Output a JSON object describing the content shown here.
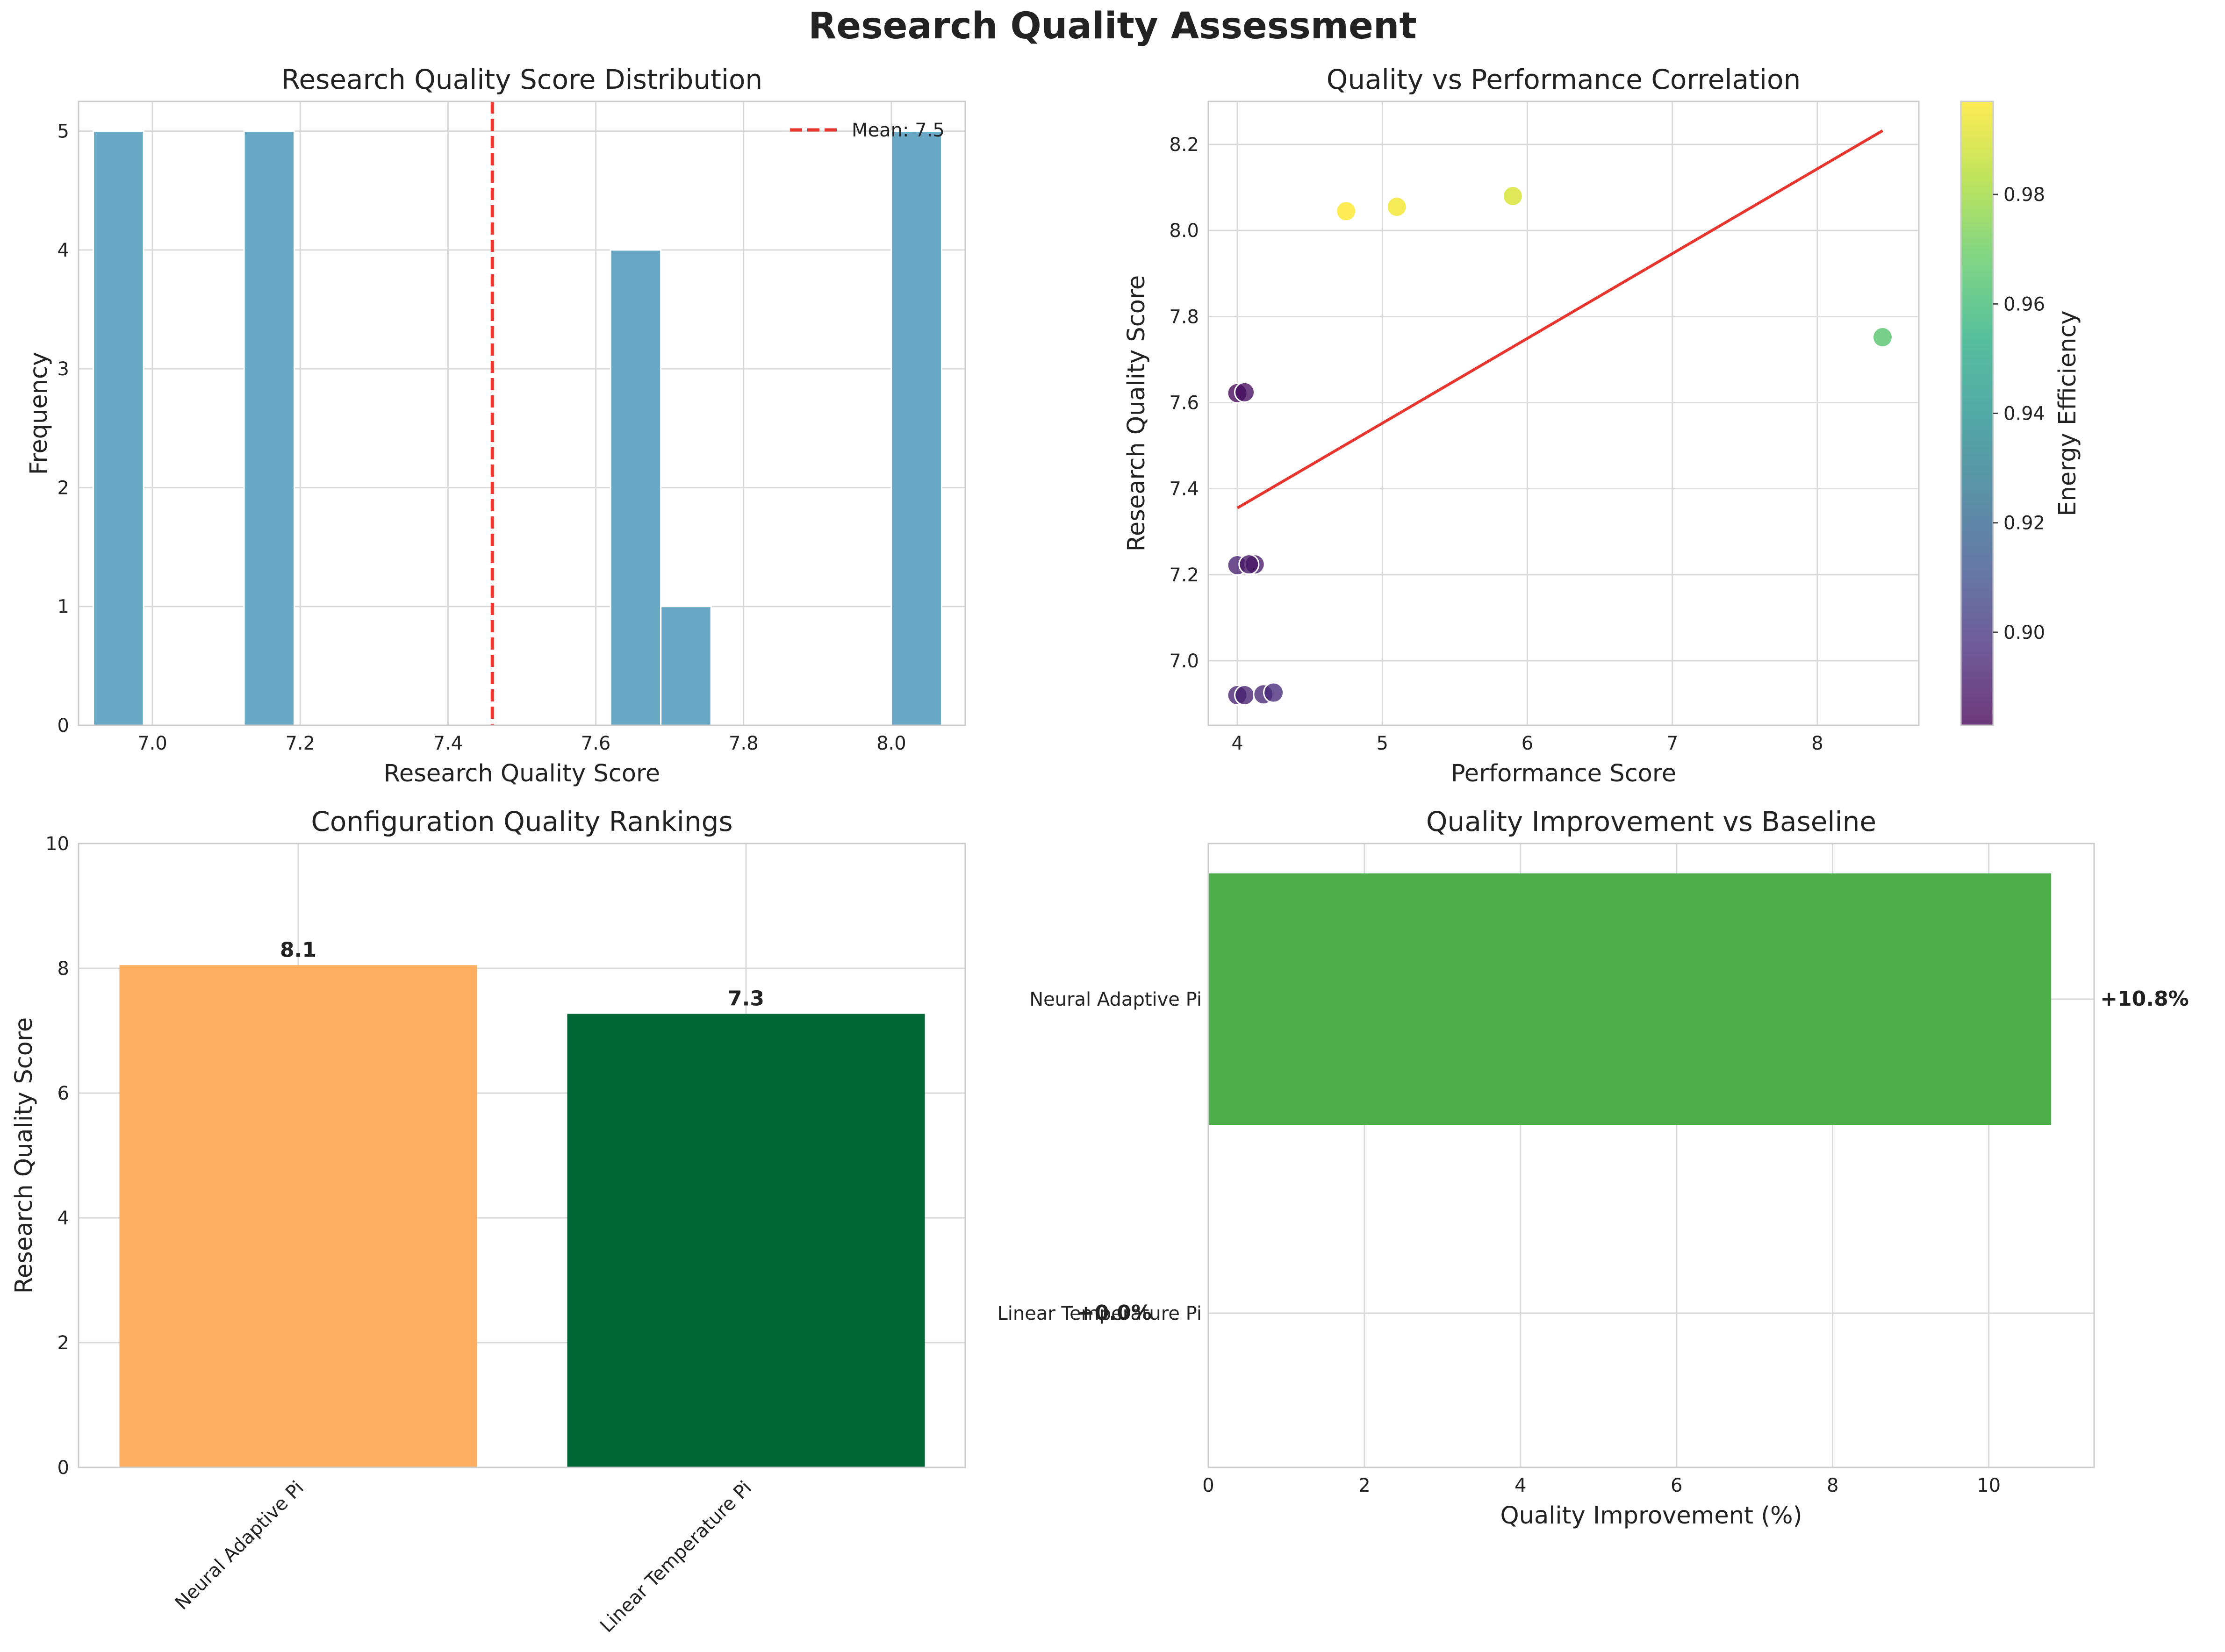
{
  "figure": {
    "title": "Research Quality Assessment"
  },
  "chart_data": [
    {
      "type": "bar",
      "title": "Research Quality Score Distribution",
      "xlabel": "Research Quality Score",
      "ylabel": "Frequency",
      "xlim": [
        6.9,
        8.1
      ],
      "ylim": [
        0,
        5.25
      ],
      "xticks": [
        7.0,
        7.2,
        7.4,
        7.6,
        7.8,
        8.0
      ],
      "xtick_labels": [
        "7.0",
        "7.2",
        "7.4",
        "7.6",
        "7.8",
        "8.0"
      ],
      "yticks": [
        0,
        1,
        2,
        3,
        4,
        5
      ],
      "ytick_labels": [
        "0",
        "1",
        "2",
        "3",
        "4",
        "5"
      ],
      "bin_width": 0.068,
      "bins": [
        {
          "start": 6.92,
          "count": 5
        },
        {
          "start": 7.124,
          "count": 5
        },
        {
          "start": 7.62,
          "count": 4
        },
        {
          "start": 7.688,
          "count": 1
        },
        {
          "start": 8.0,
          "count": 5
        }
      ],
      "mean": 7.46,
      "mean_label": "Mean: 7.5",
      "legend_position": "top-right",
      "grid": true,
      "colors": {
        "bar": "#6aa9c5",
        "mean_line": "#e8352e"
      }
    },
    {
      "type": "scatter",
      "title": "Quality vs Performance Correlation",
      "xlabel": "Performance Score",
      "ylabel": "Research Quality Score",
      "xlim": [
        3.8,
        8.7
      ],
      "ylim": [
        6.85,
        8.3
      ],
      "xticks": [
        4,
        5,
        6,
        7,
        8
      ],
      "xtick_labels": [
        "4",
        "5",
        "6",
        "7",
        "8"
      ],
      "yticks": [
        7.0,
        7.2,
        7.4,
        7.6,
        7.8,
        8.0,
        8.2
      ],
      "ytick_labels": [
        "7.0",
        "7.2",
        "7.4",
        "7.6",
        "7.8",
        "8.0",
        "8.2"
      ],
      "points": [
        {
          "x": 4.75,
          "y": 8.045,
          "c": 0.997
        },
        {
          "x": 5.1,
          "y": 8.055,
          "c": 0.995
        },
        {
          "x": 5.9,
          "y": 8.08,
          "c": 0.99
        },
        {
          "x": 8.45,
          "y": 7.752,
          "c": 0.965
        },
        {
          "x": 4.0,
          "y": 7.622,
          "c": 0.885
        },
        {
          "x": 4.05,
          "y": 7.624,
          "c": 0.887
        },
        {
          "x": 4.0,
          "y": 7.222,
          "c": 0.893
        },
        {
          "x": 4.12,
          "y": 7.224,
          "c": 0.89
        },
        {
          "x": 4.08,
          "y": 7.224,
          "c": 0.889
        },
        {
          "x": 4.0,
          "y": 6.92,
          "c": 0.894
        },
        {
          "x": 4.05,
          "y": 6.92,
          "c": 0.893
        },
        {
          "x": 4.18,
          "y": 6.922,
          "c": 0.895
        },
        {
          "x": 4.25,
          "y": 6.926,
          "c": 0.896
        }
      ],
      "trendline": {
        "x": [
          4.0,
          8.45
        ],
        "y": [
          7.355,
          8.232
        ]
      },
      "colorbar": {
        "label": "Energy Efficiency",
        "range": [
          0.883,
          0.997
        ],
        "ticks": [
          0.9,
          0.92,
          0.94,
          0.96,
          0.98
        ],
        "tick_labels": [
          "0.90",
          "0.92",
          "0.94",
          "0.96",
          "0.98"
        ],
        "colormap": "viridis"
      },
      "grid": true,
      "colors": {
        "trendline": "#e8352e"
      }
    },
    {
      "type": "bar",
      "title": "Configuration Quality Rankings",
      "xlabel": "",
      "ylabel": "Research Quality Score",
      "ylim": [
        0,
        10
      ],
      "yticks": [
        0,
        2,
        4,
        6,
        8,
        10
      ],
      "ytick_labels": [
        "0",
        "2",
        "4",
        "6",
        "8",
        "10"
      ],
      "categories": [
        "Neural Adaptive Pi",
        "Linear Temperature Pi"
      ],
      "values": [
        8.05,
        7.27
      ],
      "value_labels": [
        "8.1",
        "7.3"
      ],
      "grid": true,
      "colors": [
        "#fdae61",
        "#006837"
      ]
    },
    {
      "type": "bar",
      "orientation": "horizontal",
      "title": "Quality Improvement vs Baseline",
      "xlabel": "Quality Improvement (%)",
      "ylabel": "",
      "xlim": [
        0,
        11.35
      ],
      "xticks": [
        0,
        2,
        4,
        6,
        8,
        10
      ],
      "xtick_labels": [
        "0",
        "2",
        "4",
        "6",
        "8",
        "10"
      ],
      "categories": [
        "Neural Adaptive Pi",
        "Linear Temperature Pi"
      ],
      "values": [
        10.8,
        0.0
      ],
      "value_labels": [
        "+10.8%",
        "+0.0%"
      ],
      "grid": true,
      "colors": [
        "#4daf4a",
        "#4daf4a"
      ]
    }
  ]
}
